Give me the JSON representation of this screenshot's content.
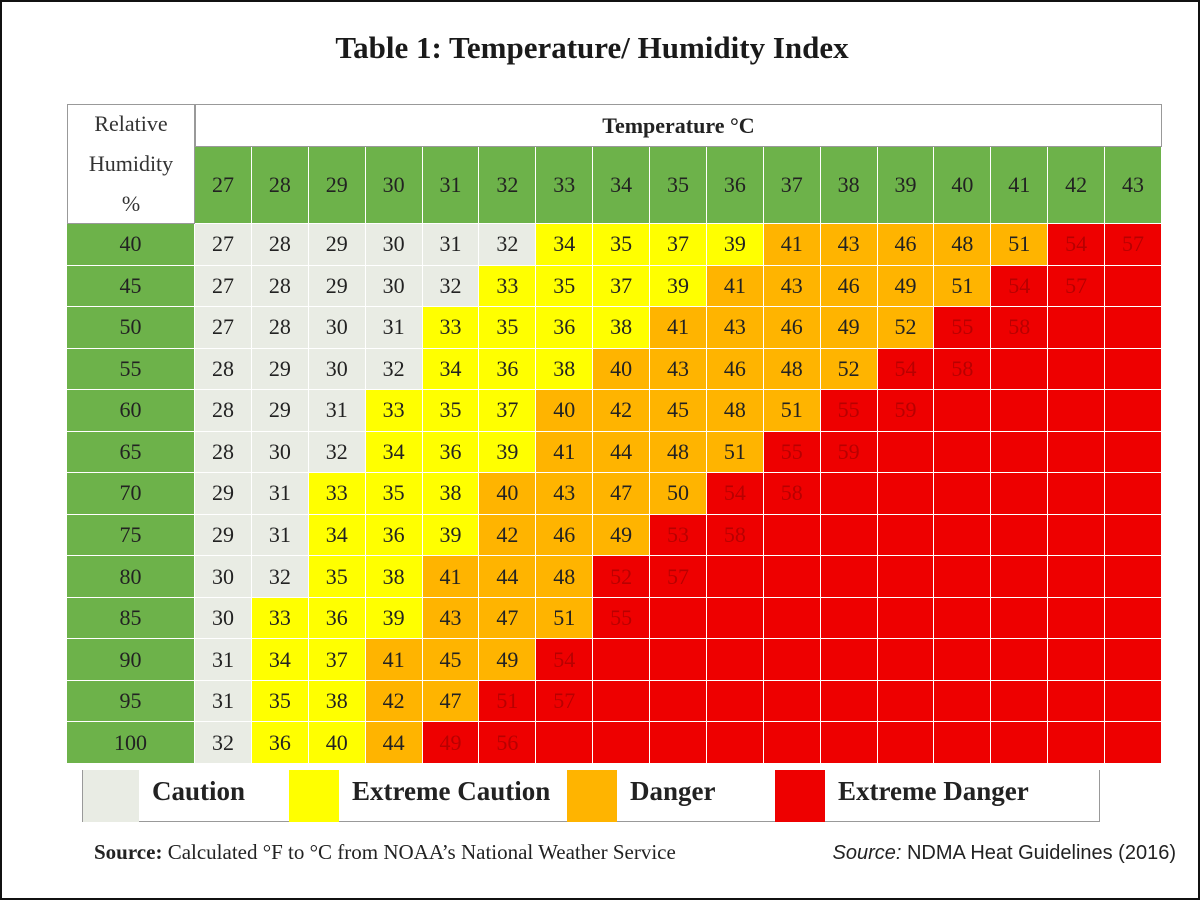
{
  "title": "Table 1: Temperature/ Humidity Index",
  "table": {
    "corner_label": [
      "Relative",
      "Humidity",
      "%"
    ],
    "column_group_label": "Temperature °C",
    "header_color": "#6db24a",
    "columns": [
      27,
      28,
      29,
      30,
      31,
      32,
      33,
      34,
      35,
      36,
      37,
      38,
      39,
      40,
      41,
      42,
      43
    ],
    "rows": [
      {
        "humidity": 40,
        "cells": [
          27,
          28,
          29,
          30,
          31,
          32,
          34,
          35,
          37,
          39,
          41,
          43,
          46,
          48,
          51,
          54,
          57
        ],
        "colors": [
          "#e9ece4",
          "#e9ece4",
          "#e9ece4",
          "#e9ece4",
          "#e9ece4",
          "#e9ece4",
          "#ffff00",
          "#ffff00",
          "#ffff00",
          "#ffff00",
          "#ffb400",
          "#ffb400",
          "#ffb400",
          "#ffb400",
          "#ffb400",
          "#ee0000",
          "#ee0000"
        ]
      },
      {
        "humidity": 45,
        "cells": [
          27,
          28,
          29,
          30,
          32,
          33,
          35,
          37,
          39,
          41,
          43,
          46,
          49,
          51,
          54,
          57,
          null
        ],
        "colors": [
          "#e9ece4",
          "#e9ece4",
          "#e9ece4",
          "#e9ece4",
          "#e9ece4",
          "#ffff00",
          "#ffff00",
          "#ffff00",
          "#ffff00",
          "#ffb400",
          "#ffb400",
          "#ffb400",
          "#ffb400",
          "#ffb400",
          "#ee0000",
          "#ee0000",
          "#ee0000"
        ]
      },
      {
        "humidity": 50,
        "cells": [
          27,
          28,
          30,
          31,
          33,
          35,
          36,
          38,
          41,
          43,
          46,
          49,
          52,
          55,
          58,
          null,
          null
        ],
        "colors": [
          "#e9ece4",
          "#e9ece4",
          "#e9ece4",
          "#e9ece4",
          "#ffff00",
          "#ffff00",
          "#ffff00",
          "#ffff00",
          "#ffb400",
          "#ffb400",
          "#ffb400",
          "#ffb400",
          "#ffb400",
          "#ee0000",
          "#ee0000",
          "#ee0000",
          "#ee0000"
        ]
      },
      {
        "humidity": 55,
        "cells": [
          28,
          29,
          30,
          32,
          34,
          36,
          38,
          40,
          43,
          46,
          48,
          52,
          54,
          58,
          null,
          null,
          null
        ],
        "colors": [
          "#e9ece4",
          "#e9ece4",
          "#e9ece4",
          "#e9ece4",
          "#ffff00",
          "#ffff00",
          "#ffff00",
          "#ffb400",
          "#ffb400",
          "#ffb400",
          "#ffb400",
          "#ffb400",
          "#ee0000",
          "#ee0000",
          "#ee0000",
          "#ee0000",
          "#ee0000"
        ]
      },
      {
        "humidity": 60,
        "cells": [
          28,
          29,
          31,
          33,
          35,
          37,
          40,
          42,
          45,
          48,
          51,
          55,
          59,
          null,
          null,
          null,
          null
        ],
        "colors": [
          "#e9ece4",
          "#e9ece4",
          "#e9ece4",
          "#ffff00",
          "#ffff00",
          "#ffff00",
          "#ffb400",
          "#ffb400",
          "#ffb400",
          "#ffb400",
          "#ffb400",
          "#ee0000",
          "#ee0000",
          "#ee0000",
          "#ee0000",
          "#ee0000",
          "#ee0000"
        ]
      },
      {
        "humidity": 65,
        "cells": [
          28,
          30,
          32,
          34,
          36,
          39,
          41,
          44,
          48,
          51,
          55,
          59,
          null,
          null,
          null,
          null,
          null
        ],
        "colors": [
          "#e9ece4",
          "#e9ece4",
          "#e9ece4",
          "#ffff00",
          "#ffff00",
          "#ffff00",
          "#ffb400",
          "#ffb400",
          "#ffb400",
          "#ffb400",
          "#ee0000",
          "#ee0000",
          "#ee0000",
          "#ee0000",
          "#ee0000",
          "#ee0000",
          "#ee0000"
        ]
      },
      {
        "humidity": 70,
        "cells": [
          29,
          31,
          33,
          35,
          38,
          40,
          43,
          47,
          50,
          54,
          58,
          null,
          null,
          null,
          null,
          null,
          null
        ],
        "colors": [
          "#e9ece4",
          "#e9ece4",
          "#ffff00",
          "#ffff00",
          "#ffff00",
          "#ffb400",
          "#ffb400",
          "#ffb400",
          "#ffb400",
          "#ee0000",
          "#ee0000",
          "#ee0000",
          "#ee0000",
          "#ee0000",
          "#ee0000",
          "#ee0000",
          "#ee0000"
        ]
      },
      {
        "humidity": 75,
        "cells": [
          29,
          31,
          34,
          36,
          39,
          42,
          46,
          49,
          53,
          58,
          null,
          null,
          null,
          null,
          null,
          null,
          null
        ],
        "colors": [
          "#e9ece4",
          "#e9ece4",
          "#ffff00",
          "#ffff00",
          "#ffff00",
          "#ffb400",
          "#ffb400",
          "#ffb400",
          "#ee0000",
          "#ee0000",
          "#ee0000",
          "#ee0000",
          "#ee0000",
          "#ee0000",
          "#ee0000",
          "#ee0000",
          "#ee0000"
        ]
      },
      {
        "humidity": 80,
        "cells": [
          30,
          32,
          35,
          38,
          41,
          44,
          48,
          52,
          57,
          null,
          null,
          null,
          null,
          null,
          null,
          null,
          null
        ],
        "colors": [
          "#e9ece4",
          "#e9ece4",
          "#ffff00",
          "#ffff00",
          "#ffb400",
          "#ffb400",
          "#ffb400",
          "#ee0000",
          "#ee0000",
          "#ee0000",
          "#ee0000",
          "#ee0000",
          "#ee0000",
          "#ee0000",
          "#ee0000",
          "#ee0000",
          "#ee0000"
        ]
      },
      {
        "humidity": 85,
        "cells": [
          30,
          33,
          36,
          39,
          43,
          47,
          51,
          55,
          null,
          null,
          null,
          null,
          null,
          null,
          null,
          null,
          null
        ],
        "colors": [
          "#e9ece4",
          "#ffff00",
          "#ffff00",
          "#ffff00",
          "#ffb400",
          "#ffb400",
          "#ffb400",
          "#ee0000",
          "#ee0000",
          "#ee0000",
          "#ee0000",
          "#ee0000",
          "#ee0000",
          "#ee0000",
          "#ee0000",
          "#ee0000",
          "#ee0000"
        ]
      },
      {
        "humidity": 90,
        "cells": [
          31,
          34,
          37,
          41,
          45,
          49,
          54,
          null,
          null,
          null,
          null,
          null,
          null,
          null,
          null,
          null,
          null
        ],
        "colors": [
          "#e9ece4",
          "#ffff00",
          "#ffff00",
          "#ffb400",
          "#ffb400",
          "#ffb400",
          "#ee0000",
          "#ee0000",
          "#ee0000",
          "#ee0000",
          "#ee0000",
          "#ee0000",
          "#ee0000",
          "#ee0000",
          "#ee0000",
          "#ee0000",
          "#ee0000"
        ]
      },
      {
        "humidity": 95,
        "cells": [
          31,
          35,
          38,
          42,
          47,
          51,
          57,
          null,
          null,
          null,
          null,
          null,
          null,
          null,
          null,
          null,
          null
        ],
        "colors": [
          "#e9ece4",
          "#ffff00",
          "#ffff00",
          "#ffb400",
          "#ffb400",
          "#ee0000",
          "#ee0000",
          "#ee0000",
          "#ee0000",
          "#ee0000",
          "#ee0000",
          "#ee0000",
          "#ee0000",
          "#ee0000",
          "#ee0000",
          "#ee0000",
          "#ee0000"
        ]
      },
      {
        "humidity": 100,
        "cells": [
          32,
          36,
          40,
          44,
          49,
          56,
          null,
          null,
          null,
          null,
          null,
          null,
          null,
          null,
          null,
          null,
          null
        ],
        "colors": [
          "#e9ece4",
          "#ffff00",
          "#ffff00",
          "#ffb400",
          "#ee0000",
          "#ee0000",
          "#ee0000",
          "#ee0000",
          "#ee0000",
          "#ee0000",
          "#ee0000",
          "#ee0000",
          "#ee0000",
          "#ee0000",
          "#ee0000",
          "#ee0000",
          "#ee0000"
        ]
      }
    ]
  },
  "legend": [
    {
      "label": "Caution",
      "color": "#e9ece4"
    },
    {
      "label": "Extreme Caution",
      "color": "#ffff00"
    },
    {
      "label": "Danger",
      "color": "#ffb400"
    },
    {
      "label": "Extreme Danger",
      "color": "#ee0000"
    }
  ],
  "footer": {
    "left_label": "Source:",
    "left_text": "Calculated °F to °C from NOAA’s National Weather Service",
    "right_label": "Source:",
    "right_text": "NDMA Heat Guidelines (2016)"
  }
}
